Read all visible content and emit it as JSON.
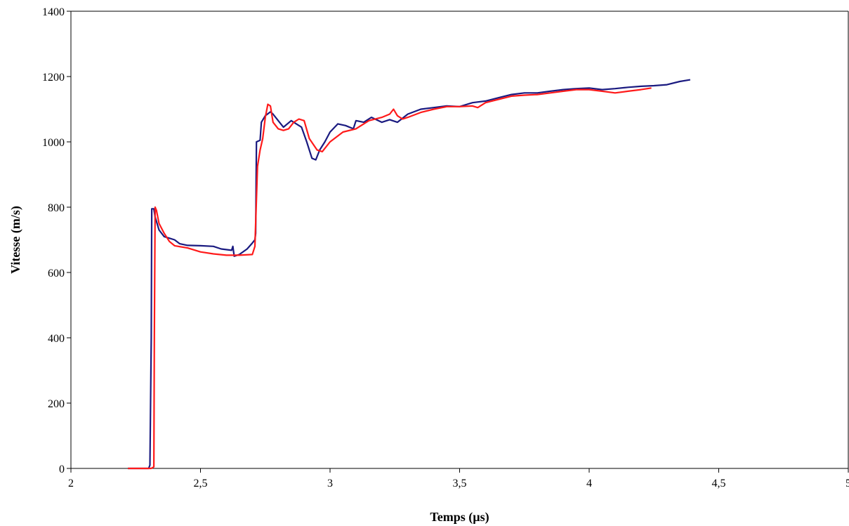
{
  "chart_data": {
    "type": "line",
    "title": "",
    "xlabel": "Temps (µs)",
    "ylabel": "Vitesse (m/s)",
    "xlim": [
      2,
      5
    ],
    "ylim": [
      0,
      1400
    ],
    "x_ticks": [
      2,
      2.5,
      3,
      3.5,
      4,
      4.5,
      5
    ],
    "x_tick_labels": [
      "2",
      "2,5",
      "3",
      "3,5",
      "4",
      "4,5",
      "5"
    ],
    "y_ticks": [
      0,
      200,
      400,
      600,
      800,
      1000,
      1200,
      1400
    ],
    "y_tick_labels": [
      "0",
      "200",
      "400",
      "600",
      "800",
      "1000",
      "1200",
      "1400"
    ],
    "grid": false,
    "legend": "none",
    "series": [
      {
        "color": "#1a1a80",
        "points": [
          [
            2.22,
            0
          ],
          [
            2.3,
            0
          ],
          [
            2.305,
            10
          ],
          [
            2.31,
            400
          ],
          [
            2.312,
            795
          ],
          [
            2.32,
            795
          ],
          [
            2.325,
            770
          ],
          [
            2.34,
            730
          ],
          [
            2.36,
            710
          ],
          [
            2.38,
            705
          ],
          [
            2.4,
            700
          ],
          [
            2.42,
            688
          ],
          [
            2.45,
            683
          ],
          [
            2.5,
            682
          ],
          [
            2.55,
            680
          ],
          [
            2.58,
            672
          ],
          [
            2.62,
            668
          ],
          [
            2.625,
            680
          ],
          [
            2.63,
            650
          ],
          [
            2.65,
            655
          ],
          [
            2.68,
            672
          ],
          [
            2.7,
            690
          ],
          [
            2.71,
            700
          ],
          [
            2.713,
            720
          ],
          [
            2.716,
            1000
          ],
          [
            2.73,
            1005
          ],
          [
            2.735,
            1060
          ],
          [
            2.75,
            1080
          ],
          [
            2.77,
            1092
          ],
          [
            2.78,
            1085
          ],
          [
            2.8,
            1065
          ],
          [
            2.82,
            1045
          ],
          [
            2.85,
            1065
          ],
          [
            2.87,
            1055
          ],
          [
            2.89,
            1045
          ],
          [
            2.91,
            1000
          ],
          [
            2.93,
            950
          ],
          [
            2.945,
            945
          ],
          [
            2.96,
            975
          ],
          [
            2.98,
            1000
          ],
          [
            3.0,
            1030
          ],
          [
            3.03,
            1055
          ],
          [
            3.06,
            1050
          ],
          [
            3.09,
            1040
          ],
          [
            3.1,
            1065
          ],
          [
            3.13,
            1060
          ],
          [
            3.16,
            1075
          ],
          [
            3.2,
            1060
          ],
          [
            3.23,
            1068
          ],
          [
            3.26,
            1060
          ],
          [
            3.3,
            1085
          ],
          [
            3.35,
            1100
          ],
          [
            3.4,
            1105
          ],
          [
            3.45,
            1110
          ],
          [
            3.5,
            1108
          ],
          [
            3.55,
            1120
          ],
          [
            3.6,
            1125
          ],
          [
            3.65,
            1135
          ],
          [
            3.7,
            1145
          ],
          [
            3.75,
            1150
          ],
          [
            3.8,
            1150
          ],
          [
            3.85,
            1155
          ],
          [
            3.9,
            1160
          ],
          [
            3.95,
            1163
          ],
          [
            4.0,
            1165
          ],
          [
            4.05,
            1160
          ],
          [
            4.1,
            1163
          ],
          [
            4.15,
            1167
          ],
          [
            4.2,
            1170
          ],
          [
            4.25,
            1172
          ],
          [
            4.3,
            1175
          ],
          [
            4.35,
            1185
          ],
          [
            4.39,
            1190
          ]
        ]
      },
      {
        "color": "#ff1a1a",
        "points": [
          [
            2.22,
            0
          ],
          [
            2.31,
            0
          ],
          [
            2.32,
            5
          ],
          [
            2.322,
            400
          ],
          [
            2.325,
            800
          ],
          [
            2.33,
            790
          ],
          [
            2.34,
            750
          ],
          [
            2.36,
            720
          ],
          [
            2.38,
            695
          ],
          [
            2.4,
            682
          ],
          [
            2.45,
            675
          ],
          [
            2.5,
            663
          ],
          [
            2.55,
            657
          ],
          [
            2.6,
            653
          ],
          [
            2.65,
            653
          ],
          [
            2.7,
            655
          ],
          [
            2.71,
            680
          ],
          [
            2.72,
            925
          ],
          [
            2.73,
            975
          ],
          [
            2.74,
            1010
          ],
          [
            2.75,
            1075
          ],
          [
            2.76,
            1115
          ],
          [
            2.77,
            1110
          ],
          [
            2.78,
            1060
          ],
          [
            2.8,
            1040
          ],
          [
            2.82,
            1035
          ],
          [
            2.84,
            1040
          ],
          [
            2.86,
            1060
          ],
          [
            2.88,
            1070
          ],
          [
            2.9,
            1065
          ],
          [
            2.92,
            1010
          ],
          [
            2.95,
            975
          ],
          [
            2.97,
            970
          ],
          [
            3.0,
            1000
          ],
          [
            3.05,
            1030
          ],
          [
            3.1,
            1040
          ],
          [
            3.15,
            1065
          ],
          [
            3.2,
            1075
          ],
          [
            3.23,
            1085
          ],
          [
            3.245,
            1100
          ],
          [
            3.26,
            1080
          ],
          [
            3.28,
            1070
          ],
          [
            3.3,
            1075
          ],
          [
            3.35,
            1090
          ],
          [
            3.4,
            1100
          ],
          [
            3.45,
            1108
          ],
          [
            3.5,
            1108
          ],
          [
            3.55,
            1110
          ],
          [
            3.57,
            1105
          ],
          [
            3.6,
            1120
          ],
          [
            3.65,
            1130
          ],
          [
            3.7,
            1140
          ],
          [
            3.75,
            1143
          ],
          [
            3.8,
            1145
          ],
          [
            3.85,
            1150
          ],
          [
            3.9,
            1155
          ],
          [
            3.95,
            1160
          ],
          [
            4.0,
            1160
          ],
          [
            4.05,
            1155
          ],
          [
            4.1,
            1150
          ],
          [
            4.15,
            1155
          ],
          [
            4.2,
            1160
          ],
          [
            4.24,
            1165
          ]
        ]
      }
    ]
  }
}
